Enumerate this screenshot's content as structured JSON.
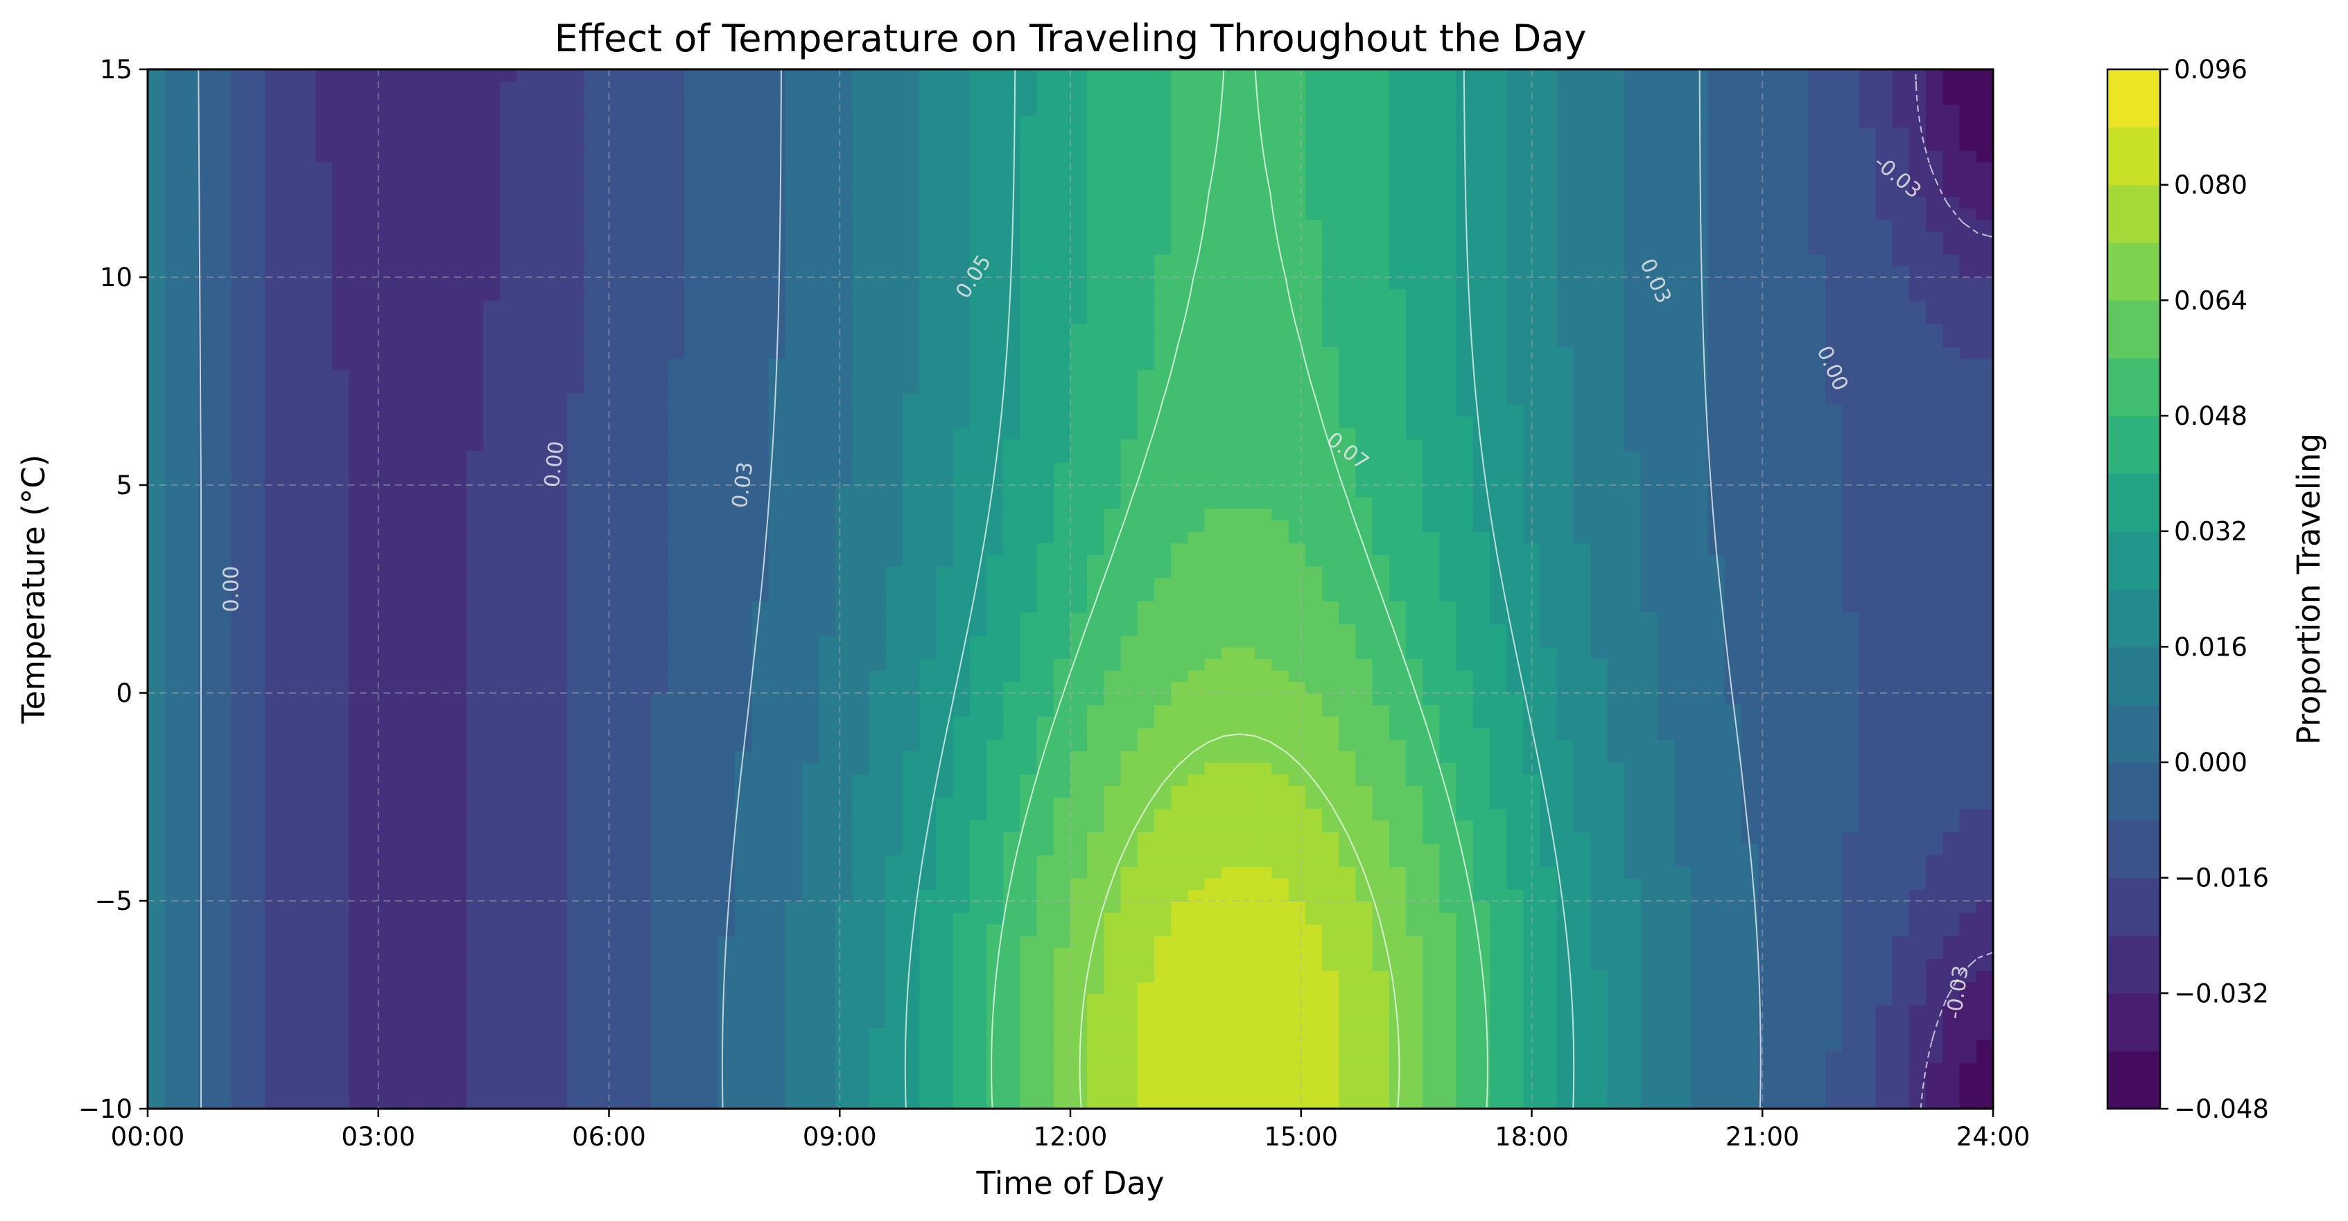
{
  "chart_data": {
    "type": "heatmap",
    "title": "Effect of Temperature on Traveling Throughout the Day",
    "xlabel": "Time of Day",
    "ylabel": "Temperature (°C)",
    "colorbar_label": "Proportion Traveling",
    "colormap": "viridis",
    "xlim": [
      0,
      24
    ],
    "ylim": [
      -10,
      15
    ],
    "clim": [
      -0.048,
      0.096
    ],
    "x_ticks": [
      0,
      3,
      6,
      9,
      12,
      15,
      18,
      21,
      24
    ],
    "x_tick_labels": [
      "00:00",
      "03:00",
      "06:00",
      "09:00",
      "12:00",
      "15:00",
      "18:00",
      "21:00",
      "24:00"
    ],
    "y_ticks": [
      -10,
      -5,
      0,
      5,
      10,
      15
    ],
    "y_tick_labels": [
      "−10",
      "−5",
      "0",
      "5",
      "10",
      "15"
    ],
    "colorbar_ticks": [
      -0.048,
      -0.032,
      -0.016,
      0.0,
      0.016,
      0.032,
      0.048,
      0.064,
      0.08,
      0.096
    ],
    "colorbar_tick_labels": [
      "−0.048",
      "−0.032",
      "−0.016",
      "0.000",
      "0.016",
      "0.032",
      "0.048",
      "0.064",
      "0.080",
      "0.096"
    ],
    "fill_levels_step": 0.008,
    "contour_levels": [
      -0.03,
      0.0,
      0.03,
      0.05,
      0.07
    ],
    "contour_labels": [
      {
        "text": "0.00",
        "x": 1.1,
        "y": 2.5,
        "rot": -90
      },
      {
        "text": "0.00",
        "x": 5.3,
        "y": 5.5,
        "rot": -84
      },
      {
        "text": "0.03",
        "x": 7.75,
        "y": 5.0,
        "rot": -82
      },
      {
        "text": "0.05",
        "x": 10.75,
        "y": 10.0,
        "rot": -58
      },
      {
        "text": "0.07",
        "x": 15.6,
        "y": 5.8,
        "rot": 38
      },
      {
        "text": "0.03",
        "x": 19.6,
        "y": 9.9,
        "rot": 66
      },
      {
        "text": "0.00",
        "x": 21.9,
        "y": 7.8,
        "rot": 66
      },
      {
        "text": "-0.03",
        "x": 22.75,
        "y": 12.4,
        "rot": 40
      },
      {
        "text": "-0.03",
        "x": 23.55,
        "y": -7.2,
        "rot": -82
      }
    ],
    "grid": true,
    "grid_style": "dashed"
  }
}
